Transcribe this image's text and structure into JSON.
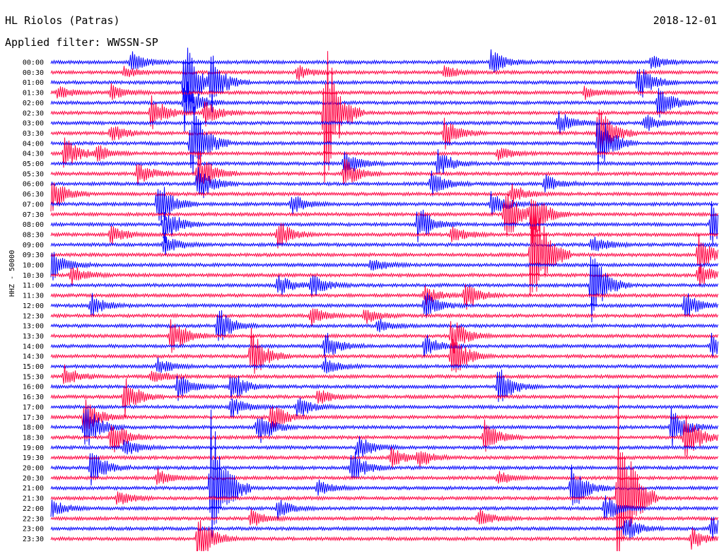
{
  "header": {
    "station": "HL Riolos (Patras)",
    "date": "2018-12-01",
    "filter": "Applied filter: WWSSN-SP",
    "channel": "HHZ - 50000"
  },
  "chart_data": {
    "type": "line",
    "title": "HL Riolos (Patras)",
    "subtitle": "Applied filter: WWSSN-SP",
    "ylabel": "HHZ - 50000",
    "row_labels": [
      "00:00",
      "00:30",
      "01:00",
      "01:30",
      "02:00",
      "02:30",
      "03:00",
      "03:30",
      "04:00",
      "04:30",
      "05:00",
      "05:30",
      "06:00",
      "06:30",
      "07:00",
      "07:30",
      "08:00",
      "08:30",
      "09:00",
      "09:30",
      "10:00",
      "10:30",
      "11:00",
      "11:30",
      "12:00",
      "12:30",
      "13:00",
      "13:30",
      "14:00",
      "14:30",
      "15:00",
      "15:30",
      "16:00",
      "16:30",
      "17:00",
      "17:30",
      "18:00",
      "18:30",
      "19:00",
      "19:30",
      "20:00",
      "20:30",
      "21:00",
      "21:30",
      "22:00",
      "22:30",
      "23:00",
      "23:30"
    ],
    "colors": [
      "#0000ff",
      "#ff0040"
    ],
    "events": [
      {
        "row": 0,
        "t": 0.12,
        "amp": 16
      },
      {
        "row": 0,
        "t": 0.66,
        "amp": 20
      },
      {
        "row": 0,
        "t": 0.9,
        "amp": 10
      },
      {
        "row": 1,
        "t": 0.11,
        "amp": 8
      },
      {
        "row": 1,
        "t": 0.37,
        "amp": 12
      },
      {
        "row": 1,
        "t": 0.59,
        "amp": 10
      },
      {
        "row": 2,
        "t": 0.2,
        "amp": 70
      },
      {
        "row": 2,
        "t": 0.24,
        "amp": 40
      },
      {
        "row": 2,
        "t": 0.88,
        "amp": 30
      },
      {
        "row": 3,
        "t": 0.01,
        "amp": 10
      },
      {
        "row": 3,
        "t": 0.09,
        "amp": 12
      },
      {
        "row": 3,
        "t": 0.8,
        "amp": 10
      },
      {
        "row": 4,
        "t": 0.2,
        "amp": 40
      },
      {
        "row": 4,
        "t": 0.91,
        "amp": 26
      },
      {
        "row": 5,
        "t": 0.15,
        "amp": 30
      },
      {
        "row": 5,
        "t": 0.23,
        "amp": 20
      },
      {
        "row": 5,
        "t": 0.41,
        "amp": 120
      },
      {
        "row": 6,
        "t": 0.76,
        "amp": 20
      },
      {
        "row": 6,
        "t": 0.89,
        "amp": 14
      },
      {
        "row": 7,
        "t": 0.09,
        "amp": 14
      },
      {
        "row": 7,
        "t": 0.59,
        "amp": 24
      },
      {
        "row": 7,
        "t": 0.82,
        "amp": 45
      },
      {
        "row": 8,
        "t": 0.21,
        "amp": 70
      },
      {
        "row": 8,
        "t": 0.82,
        "amp": 50
      },
      {
        "row": 9,
        "t": 0.02,
        "amp": 26
      },
      {
        "row": 9,
        "t": 0.07,
        "amp": 12
      },
      {
        "row": 9,
        "t": 0.67,
        "amp": 12
      },
      {
        "row": 10,
        "t": 0.44,
        "amp": 20
      },
      {
        "row": 10,
        "t": 0.58,
        "amp": 22
      },
      {
        "row": 11,
        "t": 0.13,
        "amp": 18
      },
      {
        "row": 11,
        "t": 0.22,
        "amp": 40
      },
      {
        "row": 11,
        "t": 0.44,
        "amp": 24
      },
      {
        "row": 12,
        "t": 0.22,
        "amp": 30
      },
      {
        "row": 12,
        "t": 0.57,
        "amp": 20
      },
      {
        "row": 12,
        "t": 0.74,
        "amp": 14
      },
      {
        "row": 13,
        "t": 0.0,
        "amp": 30
      },
      {
        "row": 13,
        "t": 0.69,
        "amp": 16
      },
      {
        "row": 14,
        "t": 0.16,
        "amp": 40
      },
      {
        "row": 14,
        "t": 0.36,
        "amp": 18
      },
      {
        "row": 14,
        "t": 0.66,
        "amp": 20
      },
      {
        "row": 15,
        "t": 0.68,
        "amp": 50
      },
      {
        "row": 15,
        "t": 0.72,
        "amp": 40
      },
      {
        "row": 16,
        "t": 0.17,
        "amp": 30
      },
      {
        "row": 16,
        "t": 0.55,
        "amp": 30
      },
      {
        "row": 16,
        "t": 0.99,
        "amp": 40
      },
      {
        "row": 17,
        "t": 0.09,
        "amp": 14
      },
      {
        "row": 17,
        "t": 0.34,
        "amp": 22
      },
      {
        "row": 17,
        "t": 0.6,
        "amp": 14
      },
      {
        "row": 18,
        "t": 0.17,
        "amp": 16
      },
      {
        "row": 18,
        "t": 0.81,
        "amp": 16
      },
      {
        "row": 19,
        "t": 0.72,
        "amp": 120
      },
      {
        "row": 19,
        "t": 0.97,
        "amp": 30
      },
      {
        "row": 20,
        "t": 0.0,
        "amp": 30
      },
      {
        "row": 20,
        "t": 0.48,
        "amp": 12
      },
      {
        "row": 21,
        "t": 0.03,
        "amp": 16
      },
      {
        "row": 21,
        "t": 0.97,
        "amp": 20
      },
      {
        "row": 22,
        "t": 0.34,
        "amp": 18
      },
      {
        "row": 22,
        "t": 0.39,
        "amp": 20
      },
      {
        "row": 22,
        "t": 0.81,
        "amp": 60
      },
      {
        "row": 23,
        "t": 0.56,
        "amp": 14
      },
      {
        "row": 23,
        "t": 0.62,
        "amp": 26
      },
      {
        "row": 24,
        "t": 0.06,
        "amp": 18
      },
      {
        "row": 24,
        "t": 0.56,
        "amp": 20
      },
      {
        "row": 24,
        "t": 0.95,
        "amp": 20
      },
      {
        "row": 25,
        "t": 0.39,
        "amp": 14
      },
      {
        "row": 25,
        "t": 0.47,
        "amp": 12
      },
      {
        "row": 26,
        "t": 0.25,
        "amp": 30
      },
      {
        "row": 26,
        "t": 0.49,
        "amp": 10
      },
      {
        "row": 27,
        "t": 0.18,
        "amp": 30
      },
      {
        "row": 27,
        "t": 0.6,
        "amp": 30
      },
      {
        "row": 28,
        "t": 0.41,
        "amp": 24
      },
      {
        "row": 28,
        "t": 0.56,
        "amp": 18
      },
      {
        "row": 28,
        "t": 0.99,
        "amp": 20
      },
      {
        "row": 29,
        "t": 0.3,
        "amp": 40
      },
      {
        "row": 29,
        "t": 0.6,
        "amp": 40
      },
      {
        "row": 30,
        "t": 0.16,
        "amp": 14
      },
      {
        "row": 30,
        "t": 0.41,
        "amp": 14
      },
      {
        "row": 31,
        "t": 0.02,
        "amp": 16
      },
      {
        "row": 31,
        "t": 0.15,
        "amp": 12
      },
      {
        "row": 32,
        "t": 0.19,
        "amp": 20
      },
      {
        "row": 32,
        "t": 0.27,
        "amp": 24
      },
      {
        "row": 32,
        "t": 0.67,
        "amp": 30
      },
      {
        "row": 33,
        "t": 0.11,
        "amp": 30
      },
      {
        "row": 33,
        "t": 0.4,
        "amp": 12
      },
      {
        "row": 34,
        "t": 0.27,
        "amp": 16
      },
      {
        "row": 34,
        "t": 0.37,
        "amp": 18
      },
      {
        "row": 35,
        "t": 0.05,
        "amp": 30
      },
      {
        "row": 35,
        "t": 0.33,
        "amp": 24
      },
      {
        "row": 36,
        "t": 0.05,
        "amp": 40
      },
      {
        "row": 36,
        "t": 0.31,
        "amp": 30
      },
      {
        "row": 36,
        "t": 0.93,
        "amp": 30
      },
      {
        "row": 37,
        "t": 0.09,
        "amp": 30
      },
      {
        "row": 37,
        "t": 0.65,
        "amp": 24
      },
      {
        "row": 37,
        "t": 0.95,
        "amp": 40
      },
      {
        "row": 38,
        "t": 0.11,
        "amp": 16
      },
      {
        "row": 38,
        "t": 0.46,
        "amp": 20
      },
      {
        "row": 39,
        "t": 0.51,
        "amp": 14
      },
      {
        "row": 39,
        "t": 0.55,
        "amp": 14
      },
      {
        "row": 40,
        "t": 0.06,
        "amp": 30
      },
      {
        "row": 40,
        "t": 0.45,
        "amp": 30
      },
      {
        "row": 41,
        "t": 0.16,
        "amp": 12
      },
      {
        "row": 41,
        "t": 0.67,
        "amp": 10
      },
      {
        "row": 42,
        "t": 0.24,
        "amp": 130
      },
      {
        "row": 42,
        "t": 0.4,
        "amp": 12
      },
      {
        "row": 42,
        "t": 0.78,
        "amp": 40
      },
      {
        "row": 43,
        "t": 0.1,
        "amp": 12
      },
      {
        "row": 43,
        "t": 0.85,
        "amp": 160
      },
      {
        "row": 44,
        "t": 0.0,
        "amp": 14
      },
      {
        "row": 44,
        "t": 0.34,
        "amp": 14
      },
      {
        "row": 44,
        "t": 0.83,
        "amp": 20
      },
      {
        "row": 45,
        "t": 0.3,
        "amp": 14
      },
      {
        "row": 45,
        "t": 0.64,
        "amp": 14
      },
      {
        "row": 46,
        "t": 0.86,
        "amp": 20
      },
      {
        "row": 46,
        "t": 0.99,
        "amp": 20
      },
      {
        "row": 47,
        "t": 0.22,
        "amp": 40
      },
      {
        "row": 47,
        "t": 0.96,
        "amp": 16
      }
    ]
  }
}
